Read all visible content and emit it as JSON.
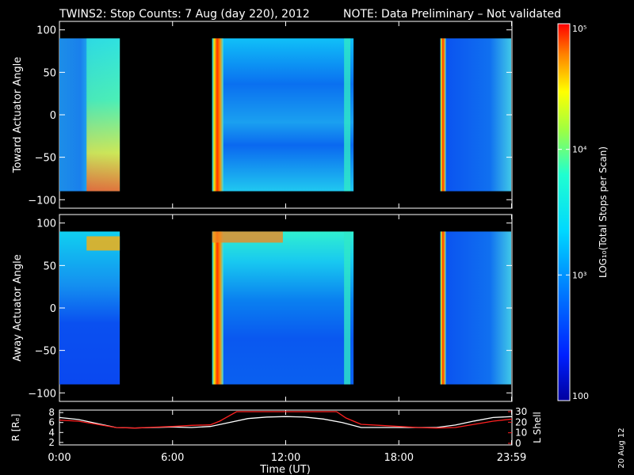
{
  "header": {
    "title": "TWINS2: Stop Counts:  7 Aug (day 220), 2012",
    "note": "NOTE: Data Preliminary – Not validated",
    "note_color": "#ff2020"
  },
  "side_date": "20 Aug 12",
  "chart_data": [
    {
      "type": "heatmap",
      "panel": "toward",
      "ylabel": "Toward Actuator Angle",
      "ylim": [
        -110,
        110
      ],
      "yticks": [
        100,
        50,
        0,
        -50,
        -100
      ],
      "angle_range": [
        -90,
        90
      ],
      "xlim": [
        0,
        24
      ],
      "data_blocks": [
        {
          "start": 0.0,
          "end": 3.2
        },
        {
          "start": 8.1,
          "end": 15.6
        },
        {
          "start": 20.2,
          "end": 24.0
        }
      ]
    },
    {
      "type": "heatmap",
      "panel": "away",
      "ylabel": "Away Actuator Angle",
      "ylim": [
        -110,
        110
      ],
      "yticks": [
        100,
        50,
        0,
        -50,
        -100
      ],
      "angle_range": [
        -90,
        90
      ],
      "xlim": [
        0,
        24
      ],
      "data_blocks": [
        {
          "start": 0.0,
          "end": 3.2
        },
        {
          "start": 8.1,
          "end": 15.6
        },
        {
          "start": 20.2,
          "end": 24.0
        }
      ]
    },
    {
      "type": "line",
      "panel": "orbit",
      "xlabel": "Time (UT)",
      "xlim": [
        0,
        24
      ],
      "xticks": [
        {
          "value": 0,
          "label": "0:00"
        },
        {
          "value": 6,
          "label": "6:00"
        },
        {
          "value": 12,
          "label": "12:00"
        },
        {
          "value": 18,
          "label": "18:00"
        },
        {
          "value": 23.98,
          "label": "23:59"
        }
      ],
      "left_axis": {
        "label": "R [Rₑ]",
        "ylim": [
          1.5,
          8.5
        ],
        "ticks": [
          2,
          4,
          6,
          8
        ]
      },
      "right_axis": {
        "label": "L Shell",
        "ylim": [
          0,
          30
        ],
        "ticks": [
          0,
          10,
          20,
          30
        ],
        "color": "#ff2020"
      },
      "series": [
        {
          "axis": "left",
          "color": "#ffffff",
          "x": [
            0,
            1,
            2,
            3,
            4,
            5,
            6,
            7,
            8,
            9,
            10,
            11,
            12,
            13,
            14,
            15,
            16,
            17,
            18,
            19,
            20,
            21,
            22,
            23,
            24
          ],
          "y": [
            7.0,
            6.6,
            5.8,
            5.0,
            4.9,
            5.0,
            5.1,
            5.0,
            5.2,
            6.0,
            6.8,
            7.1,
            7.2,
            7.1,
            6.7,
            6.0,
            5.0,
            5.0,
            5.0,
            5.0,
            5.0,
            5.5,
            6.3,
            7.0,
            7.2
          ]
        },
        {
          "axis": "right",
          "color": "#ff2020",
          "x": [
            0,
            1,
            2,
            3,
            4,
            5,
            6,
            7,
            8,
            8.5,
            9,
            9.4,
            14.7,
            15.2,
            16,
            17,
            18,
            19,
            20,
            21,
            22,
            23,
            24
          ],
          "y": [
            22,
            21,
            18,
            15,
            14.5,
            15.3,
            16,
            17,
            17.5,
            21,
            26,
            30,
            30,
            24,
            18,
            17,
            16,
            15,
            14.5,
            15,
            18,
            21,
            23
          ]
        }
      ]
    }
  ],
  "colorbar": {
    "label": "LOG₁₀(Total Stops per Scan)",
    "min": 100,
    "max": 100000,
    "scale": "log",
    "ticks": [
      {
        "value": 100000,
        "label": "10⁵"
      },
      {
        "value": 10000,
        "label": "10⁴"
      },
      {
        "value": 1000,
        "label": "10³"
      },
      {
        "value": 100,
        "label": "100"
      }
    ]
  }
}
